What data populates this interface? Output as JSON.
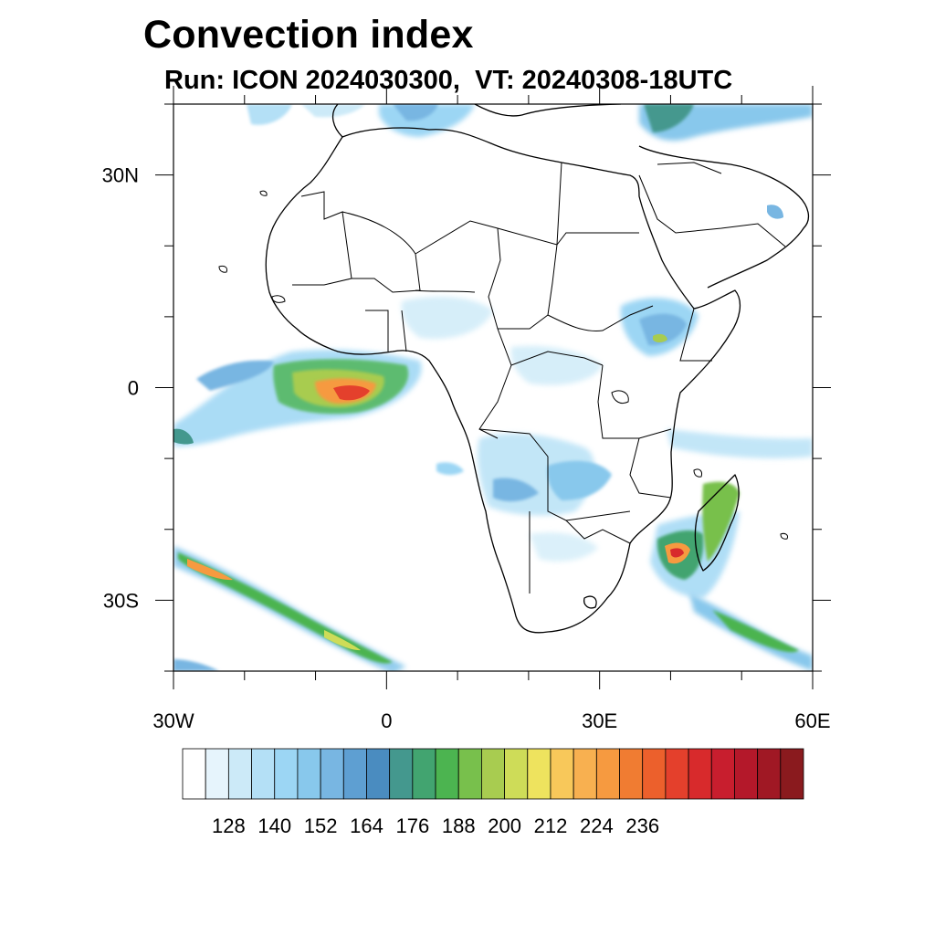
{
  "title": "Convection index",
  "subtitle": "Run: ICON 2024030300,  VT: 20240308-18UTC",
  "axes": {
    "lon_range": [
      -30,
      60
    ],
    "lat_range": [
      -40,
      40
    ],
    "x_ticks": [
      {
        "value": -30,
        "label": "30W"
      },
      {
        "value": 0,
        "label": "0"
      },
      {
        "value": 30,
        "label": "30E"
      },
      {
        "value": 60,
        "label": "60E"
      }
    ],
    "y_ticks": [
      {
        "value": 30,
        "label": "30N"
      },
      {
        "value": 0,
        "label": "0"
      },
      {
        "value": -30,
        "label": "30S"
      }
    ]
  },
  "colorbar": {
    "colors": [
      "#ffffff",
      "#e6f4fc",
      "#cceaf8",
      "#b4e0f6",
      "#9cd6f4",
      "#88c8ec",
      "#78b6e2",
      "#5e9fd2",
      "#4a8cc0",
      "#44988e",
      "#42a470",
      "#4cb450",
      "#78c04c",
      "#a8cc50",
      "#cedc58",
      "#eee35e",
      "#f8c85a",
      "#f8b050",
      "#f69a40",
      "#f07c32",
      "#ec602c",
      "#e4402c",
      "#d82a2c",
      "#c81e2e",
      "#b4182a",
      "#a01824",
      "#8a1a1e"
    ],
    "labels": [
      "128",
      "140",
      "152",
      "164",
      "176",
      "188",
      "200",
      "212",
      "224",
      "236"
    ]
  }
}
